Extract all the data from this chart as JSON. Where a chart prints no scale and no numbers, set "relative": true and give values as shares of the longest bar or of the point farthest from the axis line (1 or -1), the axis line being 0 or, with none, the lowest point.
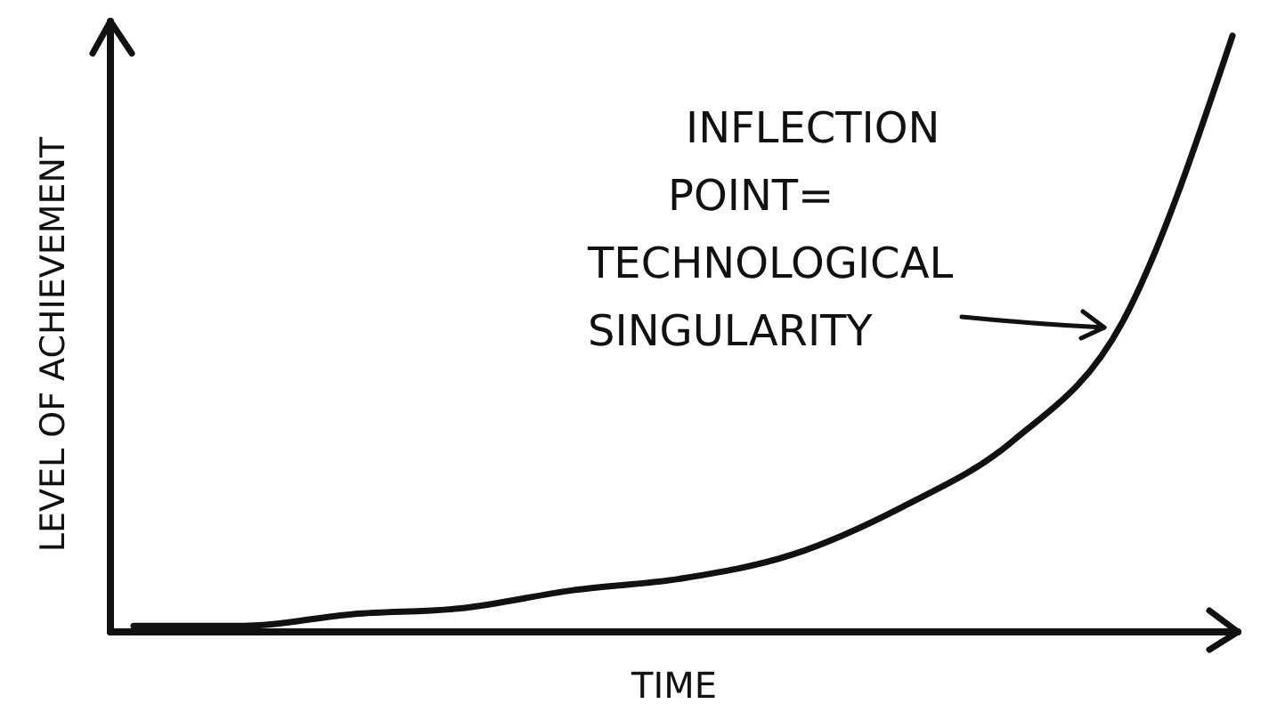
{
  "chart_data": {
    "type": "line",
    "relative": true,
    "xlabel": "TIME",
    "ylabel": "LEVEL OF ACHIEVEMENT",
    "categories": [
      null,
      null,
      null,
      null,
      null,
      null,
      null,
      null,
      null,
      null,
      null
    ],
    "series": [
      {
        "color": "#111111",
        "values": [
          0.01,
          0.01,
          0.03,
          0.04,
          0.07,
          0.09,
          0.13,
          0.21,
          0.32,
          0.52,
          1
        ]
      }
    ],
    "annotations": [
      "INFLECTION POINT= TECHNOLOGICAL SINGULARITY"
    ],
    "marker": "none",
    "line_style": "solid"
  }
}
